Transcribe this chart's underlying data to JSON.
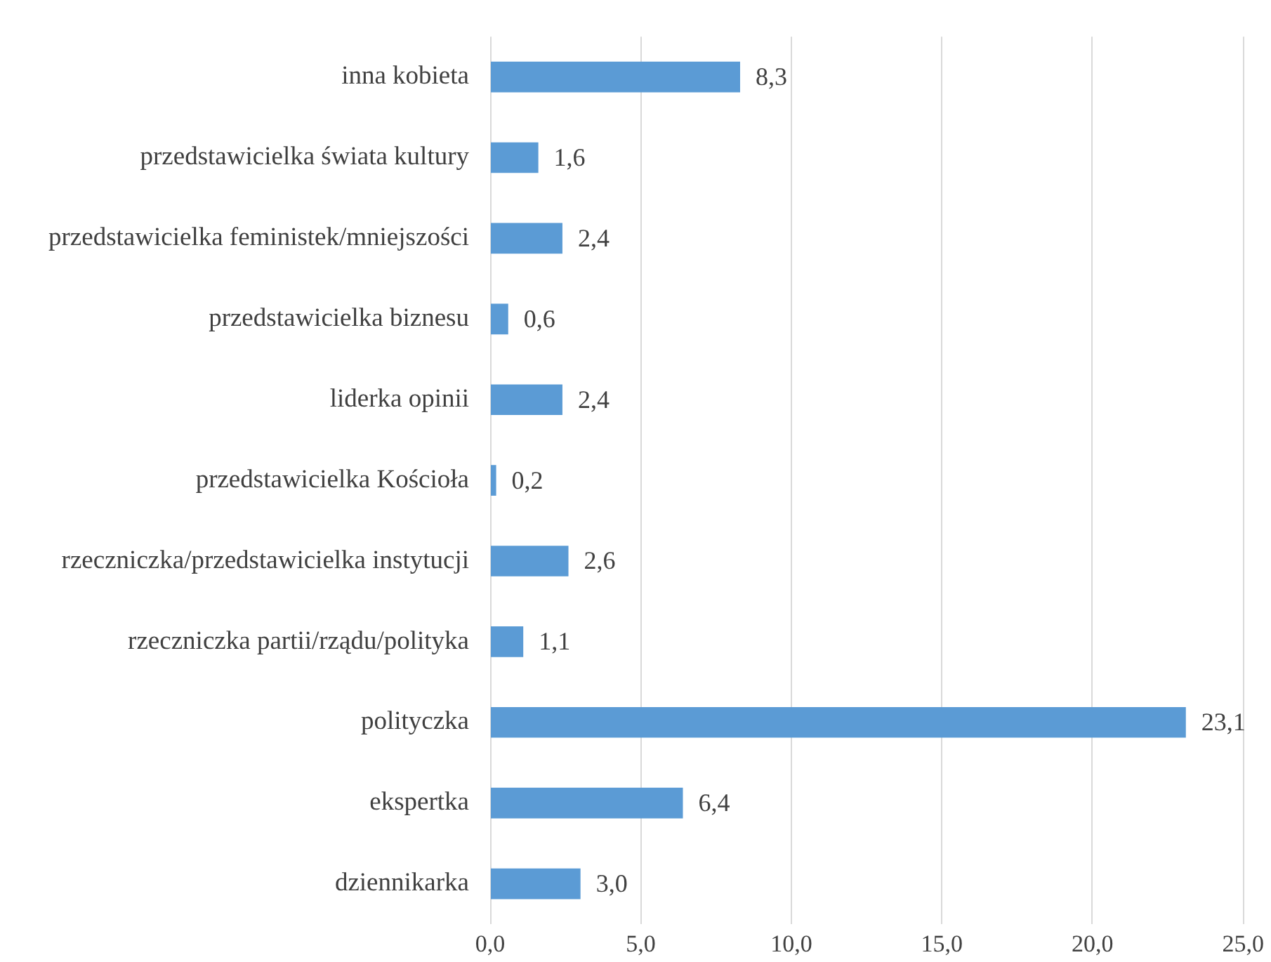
{
  "chart_data": {
    "type": "bar",
    "orientation": "horizontal",
    "categories": [
      "inna kobieta",
      "przedstawicielka świata kultury",
      "przedstawicielka feministek/mniejszości",
      "przedstawicielka biznesu",
      "liderka opinii",
      "przedstawicielka Kościoła",
      "rzeczniczka/przedstawicielka instytucji",
      "rzeczniczka partii/rządu/polityka",
      "polityczka",
      "ekspertka",
      "dziennikarka"
    ],
    "values": [
      8.3,
      1.6,
      2.4,
      0.6,
      2.4,
      0.2,
      2.6,
      1.1,
      23.1,
      6.4,
      3.0
    ],
    "value_labels": [
      "8,3",
      "1,6",
      "2,4",
      "0,6",
      "2,4",
      "0,2",
      "2,6",
      "1,1",
      "23,1",
      "6,4",
      "3,0"
    ],
    "color": "#5b9bd5",
    "xlim": [
      0,
      25
    ],
    "xticks": [
      {
        "value": 0,
        "label": "0,0"
      },
      {
        "value": 5,
        "label": "5,0"
      },
      {
        "value": 10,
        "label": "10,0"
      },
      {
        "value": 15,
        "label": "15,0"
      },
      {
        "value": 20,
        "label": "20,0"
      },
      {
        "value": 25,
        "label": "25,0"
      }
    ],
    "grid": "x"
  }
}
